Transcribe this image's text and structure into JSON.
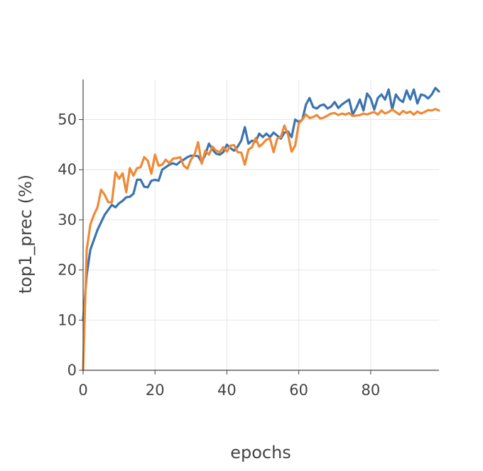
{
  "chart_data": {
    "type": "line",
    "title": "",
    "xlabel": "epochs",
    "ylabel": "top1_prec (%)",
    "xlim": [
      0,
      99
    ],
    "ylim": [
      0,
      58
    ],
    "xticks": [
      0,
      20,
      40,
      60,
      80
    ],
    "yticks": [
      0,
      10,
      20,
      30,
      40,
      50
    ],
    "grid": true,
    "legend": "none",
    "series": [
      {
        "color": "#3a73b0",
        "x": [
          0,
          1,
          2,
          3,
          4,
          5,
          6,
          7,
          8,
          9,
          10,
          11,
          12,
          13,
          14,
          15,
          16,
          17,
          18,
          19,
          20,
          21,
          22,
          23,
          24,
          25,
          26,
          27,
          28,
          29,
          30,
          31,
          32,
          33,
          34,
          35,
          36,
          37,
          38,
          39,
          40,
          41,
          42,
          43,
          44,
          45,
          46,
          47,
          48,
          49,
          50,
          51,
          52,
          53,
          54,
          55,
          56,
          57,
          58,
          59,
          60,
          61,
          62,
          63,
          64,
          65,
          66,
          67,
          68,
          69,
          70,
          71,
          72,
          73,
          74,
          75,
          76,
          77,
          78,
          79,
          80,
          81,
          82,
          83,
          84,
          85,
          86,
          87,
          88,
          89,
          90,
          91,
          92,
          93,
          94,
          95,
          96,
          97,
          98,
          99
        ],
        "values": [
          10,
          19,
          24,
          26,
          28,
          29.5,
          31,
          32,
          33,
          32.5,
          33.3,
          33.8,
          34.5,
          34.6,
          35.2,
          38,
          38,
          36.6,
          36.5,
          37.8,
          38,
          37.8,
          40,
          40.5,
          41,
          41.3,
          41,
          41.6,
          42,
          42.5,
          42.8,
          42.8,
          42.7,
          41.5,
          43,
          45.2,
          44,
          43.2,
          43,
          43.5,
          45,
          44.3,
          43.8,
          44.6,
          45.8,
          48.5,
          45.2,
          45.8,
          45.6,
          47.2,
          46.5,
          47.2,
          46.5,
          47.4,
          46.8,
          46.2,
          47.4,
          47.6,
          46.5,
          50,
          49.5,
          50,
          53,
          54.3,
          52.5,
          52.2,
          52.8,
          53,
          52.2,
          52.6,
          53.5,
          52.3,
          53,
          53.5,
          54,
          51,
          52.3,
          54,
          51.8,
          55.2,
          54.2,
          52,
          54.3,
          55,
          54,
          56,
          52,
          55,
          54,
          53.5,
          55.8,
          54,
          56,
          53.2,
          55,
          54.8,
          54.2,
          55,
          56.3,
          55.6
        ]
      },
      {
        "color": "#ee8935",
        "x": [
          0,
          1,
          2,
          3,
          4,
          5,
          6,
          7,
          8,
          9,
          10,
          11,
          12,
          13,
          14,
          15,
          16,
          17,
          18,
          19,
          20,
          21,
          22,
          23,
          24,
          25,
          26,
          27,
          28,
          29,
          30,
          31,
          32,
          33,
          34,
          35,
          36,
          37,
          38,
          39,
          40,
          41,
          42,
          43,
          44,
          45,
          46,
          47,
          48,
          49,
          50,
          51,
          52,
          53,
          54,
          55,
          56,
          57,
          58,
          59,
          60,
          61,
          62,
          63,
          64,
          65,
          66,
          67,
          68,
          69,
          70,
          71,
          72,
          73,
          74,
          75,
          76,
          77,
          78,
          79,
          80,
          81,
          82,
          83,
          84,
          85,
          86,
          87,
          88,
          89,
          90,
          91,
          92,
          93,
          94,
          95,
          96,
          97,
          98,
          99
        ],
        "values": [
          0,
          24,
          29,
          31,
          32.5,
          36,
          35,
          33.5,
          33.5,
          39.5,
          38.2,
          39.3,
          35.5,
          40.3,
          38.8,
          40.3,
          40.5,
          42.5,
          41.8,
          39.2,
          43,
          40.8,
          41,
          42,
          41.3,
          42.2,
          42.3,
          42.5,
          40.8,
          40.2,
          42,
          43,
          45.5,
          41.2,
          43.8,
          43,
          44.6,
          43.8,
          43.5,
          44.5,
          43.6,
          44.8,
          44.9,
          43.5,
          43.4,
          41,
          44,
          44.5,
          46.3,
          44.6,
          45.2,
          46,
          46.2,
          43.5,
          46.2,
          46.5,
          48.8,
          47,
          43.6,
          44.8,
          49.2,
          50,
          51,
          50.3,
          50.5,
          50.9,
          50.2,
          50.4,
          50.8,
          51.2,
          51.3,
          50.9,
          51.2,
          51,
          51.3,
          50.7,
          50.8,
          50.9,
          51.2,
          51,
          51.3,
          51.5,
          51,
          51.8,
          51.2,
          51.5,
          52,
          51.5,
          51,
          51.7,
          51.3,
          51.6,
          51,
          51.6,
          51.2,
          51.5,
          51.9,
          51.8,
          52.1,
          51.8
        ]
      }
    ]
  }
}
